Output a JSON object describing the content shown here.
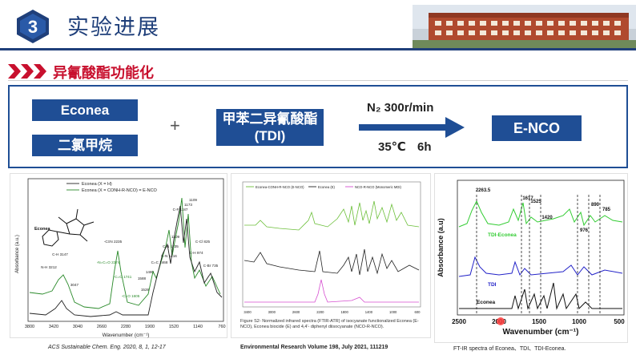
{
  "header": {
    "section_number": "3",
    "section_title": "实验进展"
  },
  "subtitle": "异氰酸酯功能化",
  "reaction": {
    "reactant1": "Econea",
    "solvent": "二氯甲烷",
    "plus": "+",
    "reactant2_line1": "甲苯二异氰酸酯",
    "reactant2_line2": "(TDI)",
    "cond_top": "N₂  300r/min",
    "cond_bottom": "35℃  6h",
    "product": "E-NCO"
  },
  "panel1": {
    "legend": [
      "Econea (X = H)",
      "Econea (X = CONH-R-NCO) = E-NCO"
    ],
    "compound": "Econea",
    "ylabel": "Absorbance (a.u.)",
    "xlabel": "Wavenumber (cm⁻¹)",
    "xticks": [
      "3800",
      "3420",
      "3040",
      "2660",
      "2280",
      "1900",
      "1520",
      "1140",
      "760"
    ],
    "peaks": [
      "N-H 3212",
      "C-H 3147",
      "3047",
      "-C≡N 2235",
      "-N=C=O 2274",
      "-C=O 1741",
      "-C=O 1605",
      "1588",
      "1528",
      "1480",
      "C=C 1468",
      "C-N 1416",
      "C-N 1335",
      "1309",
      "C-F 1187",
      "1173",
      "1109",
      "C-H 974",
      "C-Cl 825",
      "C-Br 735"
    ],
    "caption": "ACS Sustainable Chem. Eng. 2020, 8, 1, 12-17",
    "colors": {
      "black": "#222222",
      "green": "#2a8a2a"
    }
  },
  "panel2": {
    "legend": [
      "Econea-CONH-R-NCO (E-NCO)",
      "Econea (E)",
      "NCO-R-NCO (Monomeric MDI)"
    ],
    "xticks": [
      "3400",
      "3000",
      "2600",
      "2200",
      "1800",
      "1400",
      "1000",
      "600"
    ],
    "figure_note": "Figure S2- Normalized infrared spectra (FTIR-ATR) of isocyanate functionalized Econea (E-NCO), Econea biocide (E) and 4,4'- diphenyl diisocyanate (NCO-R-NCO).",
    "caption": "Environmental Research Volume 198, July 2021, 111219",
    "colors": {
      "green": "#6cbf3a",
      "black": "#222222",
      "magenta": "#d64fd0"
    }
  },
  "panel3": {
    "ylabel": "Absorbance (a.u)",
    "xlabel": "Wavenumber (cm⁻¹)",
    "xticks": [
      "2500",
      "2000",
      "1500",
      "1000",
      "500"
    ],
    "peaks": [
      "2263.5",
      "1617",
      "1525",
      "1420",
      "976",
      "890",
      "785"
    ],
    "series": [
      "TDI-Econea",
      "TDI",
      "Econea"
    ],
    "caption": "FT-IR spectra of Econea、TDI、TDI-Econea.",
    "colors": {
      "green": "#33cc33",
      "blue": "#2323c8",
      "black": "#111111"
    }
  },
  "colors": {
    "brand_blue": "#1f4e95",
    "title_red": "#c8102e",
    "badge_blue": "#1f3f7a"
  }
}
